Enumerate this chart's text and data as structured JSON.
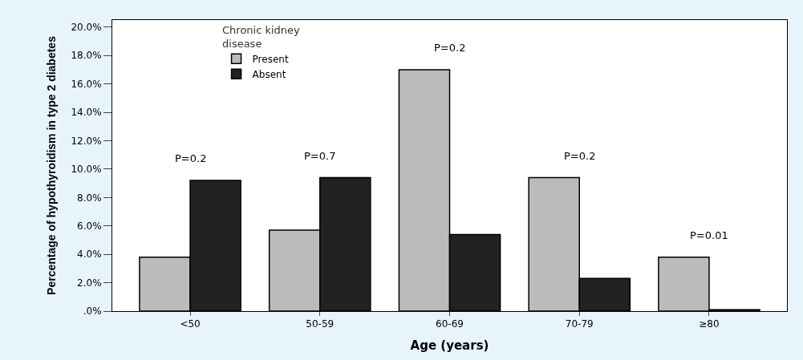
{
  "chart_data": {
    "type": "bar",
    "xlabel": "Age (years)",
    "ylabel": "Percentage of hypothyroidism in type 2 diabetes",
    "legend_title": "Chronic kidney disease",
    "categories": [
      "<50",
      "50-59",
      "60-69",
      "70-79",
      "≥80"
    ],
    "series": [
      {
        "name": "Present",
        "color": "#bbbbbb",
        "values": [
          3.8,
          5.7,
          17.0,
          9.4,
          3.8
        ]
      },
      {
        "name": "Absent",
        "color": "#222222",
        "values": [
          9.2,
          9.4,
          5.4,
          2.3,
          0.1
        ]
      }
    ],
    "ylim": [
      0,
      20.5
    ],
    "yticks": [
      {
        "value": 0,
        "label": ".0%"
      },
      {
        "value": 2,
        "label": "2.0%"
      },
      {
        "value": 4,
        "label": "4.0%"
      },
      {
        "value": 6,
        "label": "6.0%"
      },
      {
        "value": 8,
        "label": "8.0%"
      },
      {
        "value": 10,
        "label": "10.0%"
      },
      {
        "value": 12,
        "label": "12.0%"
      },
      {
        "value": 14,
        "label": "14.0%"
      },
      {
        "value": 16,
        "label": "16.0%"
      },
      {
        "value": 18,
        "label": "18.0%"
      },
      {
        "value": 20,
        "label": "20.0%"
      }
    ],
    "annotations": [
      "P=0.2",
      "P=0.7",
      "P=0.2",
      "P=0.2",
      "P=0.01"
    ],
    "legend": "top left"
  }
}
